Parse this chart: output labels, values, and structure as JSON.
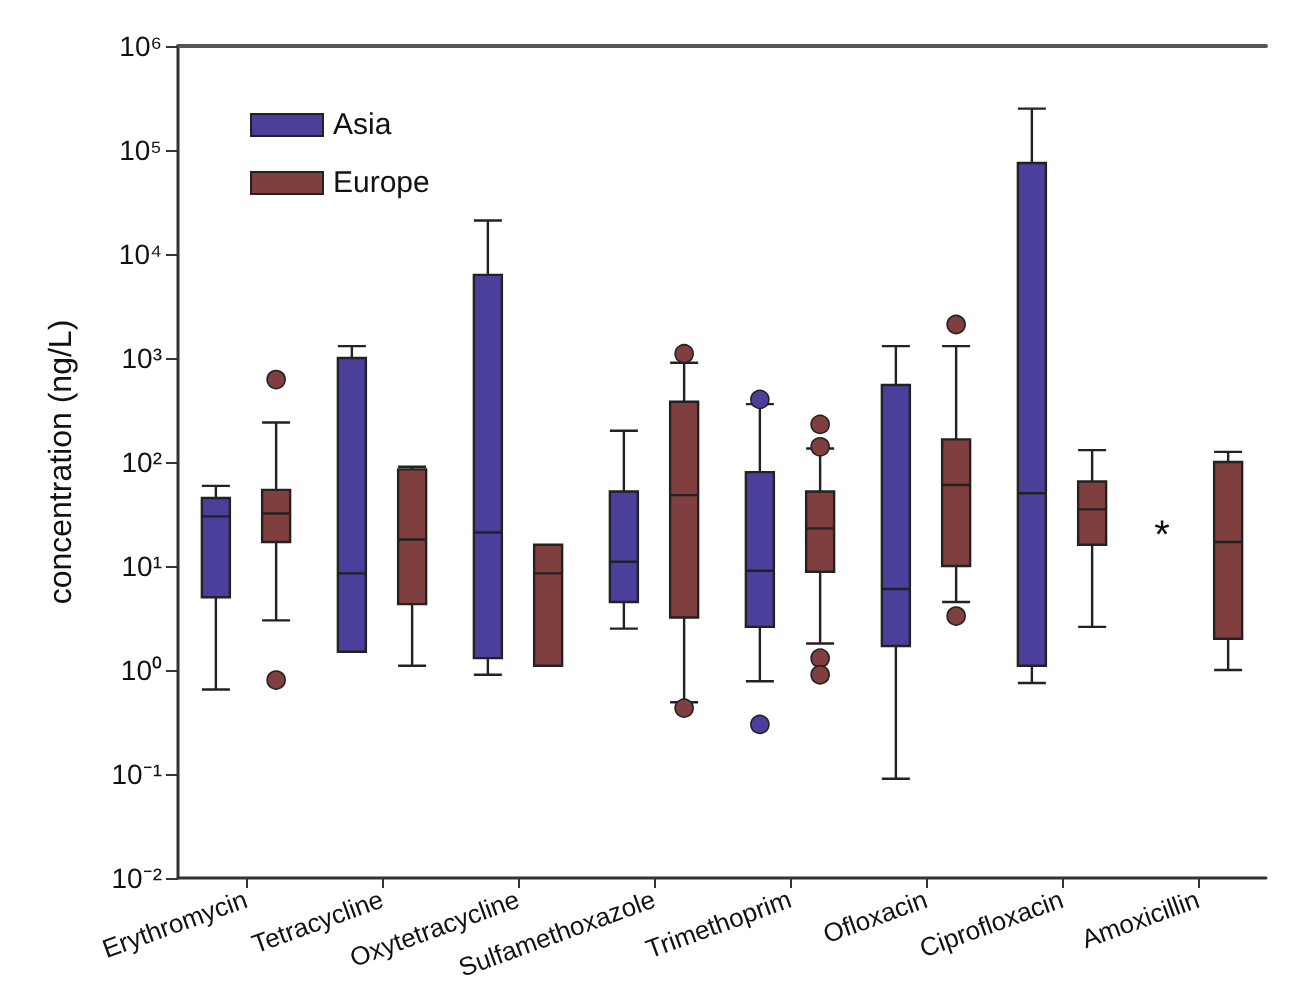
{
  "chart_data": {
    "type": "box",
    "ylabel": "concentration (ng/L)",
    "log": true,
    "categories": [
      "Erythromycin",
      "Tetracycline",
      "Oxytetracycline",
      "Sulfamethoxazole",
      "Trimethoprim",
      "Ofloxacin",
      "Ciprofloxacin",
      "Amoxicillin"
    ],
    "ylim": [
      0.01,
      1000000
    ],
    "yticks": [
      {
        "value": 0.01,
        "label": "10⁻²"
      },
      {
        "value": 0.1,
        "label": "10⁻¹"
      },
      {
        "value": 1,
        "label": "10⁰"
      },
      {
        "value": 10,
        "label": "10¹"
      },
      {
        "value": 100,
        "label": "10²"
      },
      {
        "value": 1000,
        "label": "10³"
      },
      {
        "value": 10000,
        "label": "10⁴"
      },
      {
        "value": 100000,
        "label": "10⁵"
      },
      {
        "value": 1000000,
        "label": "10⁶"
      }
    ],
    "grid": false,
    "legend": "top left",
    "series": [
      {
        "name": "Asia",
        "color": "#4b3f9c",
        "boxes": [
          {
            "low": 0.65,
            "q1": 5,
            "median": 30,
            "q3": 45,
            "high": 59
          },
          {
            "low": 1.5,
            "q1": 1.5,
            "median": 8.5,
            "q3": 1000,
            "high": 1300
          },
          {
            "low": 0.9,
            "q1": 1.3,
            "median": 21,
            "q3": 6300,
            "high": 21000
          },
          {
            "low": 2.5,
            "q1": 4.5,
            "median": 11,
            "q3": 52,
            "high": 200
          },
          {
            "low": 0.78,
            "q1": 2.6,
            "median": 9,
            "q3": 80,
            "high": 360,
            "outliers": [
              400,
              0.3
            ]
          },
          {
            "low": 0.09,
            "q1": 1.7,
            "median": 6,
            "q3": 550,
            "high": 1300
          },
          {
            "low": 0.75,
            "q1": 1.1,
            "median": 50,
            "q3": 75000,
            "high": 250000
          },
          null
        ]
      },
      {
        "name": "Europe",
        "color": "#7f3f3f",
        "boxes": [
          {
            "low": 3,
            "q1": 17,
            "median": 32,
            "q3": 54,
            "high": 240,
            "outliers": [
              620,
              0.8
            ]
          },
          {
            "low": 1.1,
            "q1": 4.3,
            "median": 18,
            "q3": 85,
            "high": 90
          },
          {
            "low": 1.1,
            "q1": 1.1,
            "median": 8.5,
            "q3": 16,
            "high": 16
          },
          {
            "low": 0.49,
            "q1": 3.2,
            "median": 48,
            "q3": 380,
            "high": 900,
            "outliers": [
              1100,
              0.43
            ]
          },
          {
            "low": 1.8,
            "q1": 8.8,
            "median": 23,
            "q3": 52,
            "high": 135,
            "outliers": [
              140,
              230,
              1.3,
              0.9
            ]
          },
          {
            "low": 4.5,
            "q1": 10,
            "median": 60,
            "q3": 165,
            "high": 1300,
            "outliers": [
              2100,
              3.3
            ]
          },
          {
            "low": 2.6,
            "q1": 16,
            "median": 35,
            "q3": 65,
            "high": 130
          },
          {
            "low": 1,
            "q1": 2,
            "median": 17,
            "q3": 100,
            "high": 125
          }
        ]
      }
    ],
    "annotations": [
      "*"
    ]
  }
}
